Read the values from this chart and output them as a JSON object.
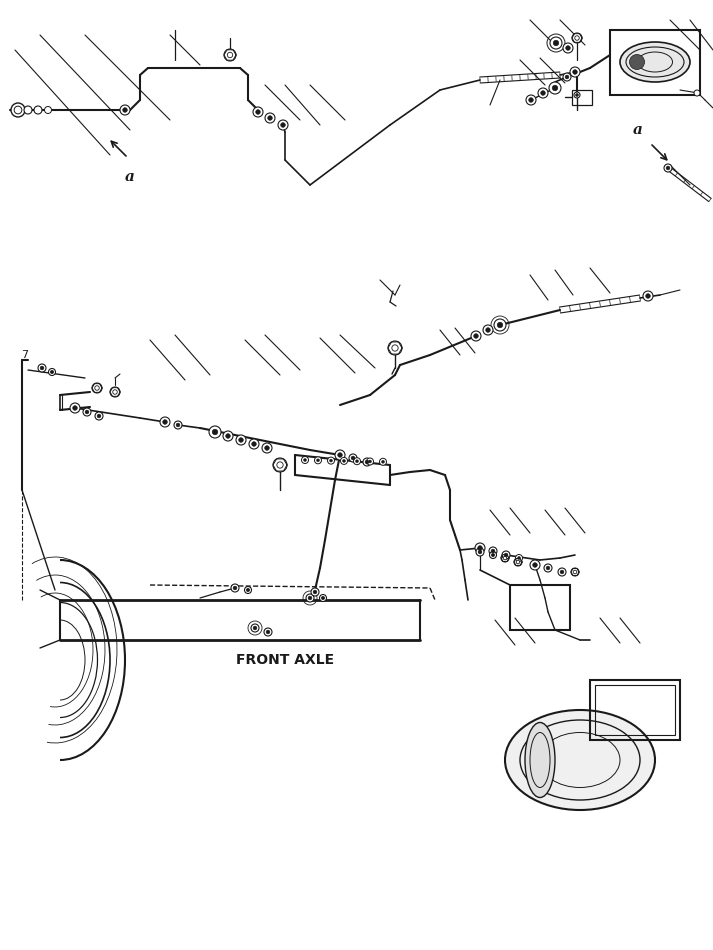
{
  "bg_color": "#ffffff",
  "line_color": "#1a1a1a",
  "fig_width": 7.13,
  "fig_height": 9.5,
  "dpi": 100,
  "label_a1": "a",
  "label_a2": "a",
  "label_front_axle": "FRONT AXLE"
}
